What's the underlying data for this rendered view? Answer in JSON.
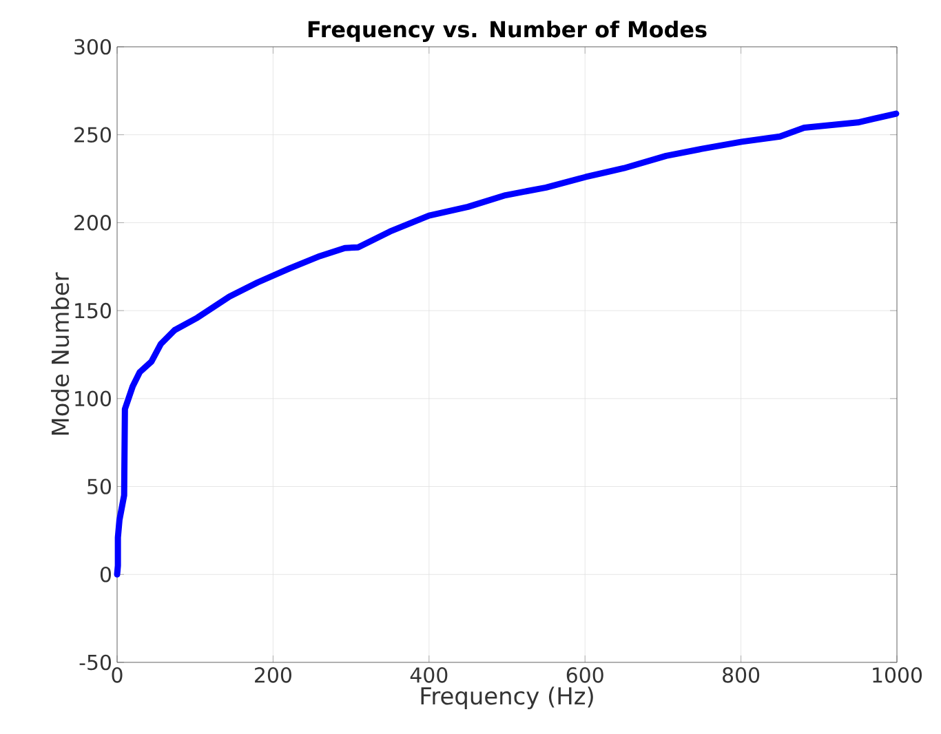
{
  "chart_data": {
    "type": "line",
    "title": "Frequency vs. Number of Modes",
    "xlabel": "Frequency (Hz)",
    "ylabel": "Mode Number",
    "x": [
      0,
      1,
      1,
      3,
      9,
      10,
      20,
      29,
      44,
      56,
      74,
      103,
      144,
      180,
      221,
      260,
      292,
      309,
      350,
      400,
      450,
      498,
      550,
      601,
      650,
      704,
      750,
      801,
      850,
      881,
      950,
      999
    ],
    "series": [
      {
        "color": "#0000ff",
        "values": [
          0,
          5,
          21,
          31,
          45,
          94,
          107,
          115,
          121,
          131,
          139,
          146,
          158,
          166,
          174,
          181,
          185.6,
          186,
          195,
          204,
          209,
          215.6,
          220,
          226,
          231,
          238,
          242,
          246,
          249,
          254,
          257,
          262
        ]
      }
    ],
    "xlim": [
      0,
      1000
    ],
    "ylim": [
      -50,
      300
    ],
    "xticks": [
      0,
      200,
      400,
      600,
      800,
      1000
    ],
    "yticks": [
      -50,
      0,
      50,
      100,
      150,
      200,
      250,
      300
    ],
    "grid": true,
    "marker": "none",
    "line_style": "solid"
  }
}
